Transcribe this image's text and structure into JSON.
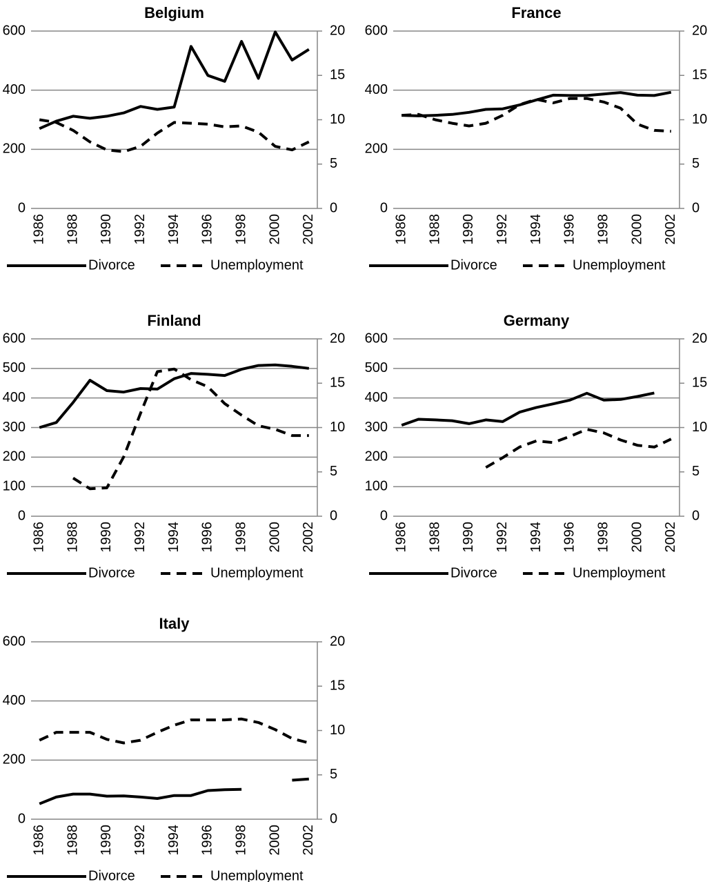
{
  "chart_data": [
    {
      "type": "line",
      "title": "Belgium",
      "categories": [
        "1986",
        null,
        "1988",
        null,
        "1990",
        null,
        "1992",
        null,
        "1994",
        null,
        "1996",
        null,
        "1998",
        null,
        "2000",
        null,
        "2002"
      ],
      "series": [
        {
          "name": "Divorce",
          "color": "#000000",
          "style": "solid",
          "values": [
            270,
            295,
            312,
            305,
            312,
            323,
            345,
            335,
            343,
            548,
            450,
            430,
            565,
            440,
            597,
            502,
            538
          ]
        },
        {
          "name": "Unemployment",
          "color": "#000000",
          "style": "dashed",
          "axis": "y2",
          "values": [
            10.0,
            9.7,
            8.8,
            7.5,
            6.6,
            6.4,
            7.0,
            8.5,
            9.7,
            9.6,
            9.5,
            9.2,
            9.3,
            8.6,
            7.0,
            6.6,
            7.5
          ]
        }
      ],
      "ylim": [
        0,
        600
      ],
      "yticks": [
        0,
        200,
        400,
        600
      ],
      "y2lim": [
        0,
        20
      ],
      "y2ticks": [
        0,
        5,
        10,
        15,
        20
      ],
      "grid": true,
      "legend": "bottom"
    },
    {
      "type": "line",
      "title": "France",
      "categories": [
        "1986",
        null,
        "1988",
        null,
        "1990",
        null,
        "1992",
        null,
        "1994",
        null,
        "1996",
        null,
        "1998",
        null,
        "2000",
        null,
        "2002"
      ],
      "series": [
        {
          "name": "Divorce",
          "color": "#000000",
          "style": "solid",
          "values": [
            315,
            313,
            315,
            318,
            325,
            335,
            337,
            350,
            367,
            383,
            382,
            382,
            387,
            392,
            383,
            382,
            393
          ]
        },
        {
          "name": "Unemployment",
          "color": "#000000",
          "style": "dashed",
          "axis": "y2",
          "values": [
            10.5,
            10.6,
            10.0,
            9.6,
            9.3,
            9.6,
            10.5,
            11.7,
            12.3,
            11.9,
            12.4,
            12.4,
            12.0,
            11.3,
            9.5,
            8.8,
            8.7
          ]
        }
      ],
      "ylim": [
        0,
        600
      ],
      "yticks": [
        0,
        200,
        400,
        600
      ],
      "y2lim": [
        0,
        20
      ],
      "y2ticks": [
        0,
        5,
        10,
        15,
        20
      ],
      "grid": true,
      "legend": "bottom"
    },
    {
      "type": "line",
      "title": "Finland",
      "categories": [
        "1986",
        null,
        "1988",
        null,
        "1990",
        null,
        "1992",
        null,
        "1994",
        null,
        "1996",
        null,
        "1998",
        null,
        "2000",
        null,
        "2002"
      ],
      "series": [
        {
          "name": "Divorce",
          "color": "#000000",
          "style": "solid",
          "values": [
            300,
            317,
            385,
            460,
            425,
            420,
            432,
            430,
            465,
            483,
            480,
            476,
            497,
            510,
            512,
            507,
            500
          ]
        },
        {
          "name": "Unemployment",
          "color": "#000000",
          "style": "dashed",
          "axis": "y2",
          "values": [
            null,
            null,
            4.3,
            3.1,
            3.2,
            6.7,
            11.6,
            16.3,
            16.6,
            15.4,
            14.6,
            12.7,
            11.4,
            10.2,
            9.8,
            9.1,
            9.1
          ]
        }
      ],
      "ylim": [
        0,
        600
      ],
      "yticks": [
        0,
        100,
        200,
        300,
        400,
        500,
        600
      ],
      "y2lim": [
        0,
        20
      ],
      "y2ticks": [
        0,
        5,
        10,
        15,
        20
      ],
      "grid": true,
      "legend": "bottom"
    },
    {
      "type": "line",
      "title": "Germany",
      "categories": [
        "1986",
        null,
        "1988",
        null,
        "1990",
        null,
        "1992",
        null,
        "1994",
        null,
        "1996",
        null,
        "1998",
        null,
        "2000",
        null,
        "2002"
      ],
      "series": [
        {
          "name": "Divorce",
          "color": "#000000",
          "style": "solid",
          "values": [
            308,
            328,
            326,
            323,
            313,
            326,
            320,
            352,
            368,
            380,
            393,
            416,
            393,
            395,
            405,
            417,
            null
          ]
        },
        {
          "name": "Unemployment",
          "color": "#000000",
          "style": "dashed",
          "axis": "y2",
          "values": [
            null,
            null,
            null,
            null,
            null,
            5.5,
            6.6,
            7.8,
            8.5,
            8.3,
            9.0,
            9.8,
            9.4,
            8.6,
            8.0,
            7.8,
            8.7
          ]
        }
      ],
      "ylim": [
        0,
        600
      ],
      "yticks": [
        0,
        100,
        200,
        300,
        400,
        500,
        600
      ],
      "y2lim": [
        0,
        20
      ],
      "y2ticks": [
        0,
        5,
        10,
        15,
        20
      ],
      "grid": true,
      "legend": "bottom"
    },
    {
      "type": "line",
      "title": "Italy",
      "categories": [
        "1986",
        null,
        "1988",
        null,
        "1990",
        null,
        "1992",
        null,
        "1994",
        null,
        "1996",
        null,
        "1998",
        null,
        "2000",
        null,
        "2002"
      ],
      "series": [
        {
          "name": "Divorce",
          "color": "#000000",
          "style": "solid",
          "values": [
            52,
            75,
            85,
            85,
            78,
            79,
            75,
            70,
            80,
            80,
            97,
            100,
            101,
            null,
            null,
            132,
            136
          ]
        },
        {
          "name": "Unemployment",
          "color": "#000000",
          "style": "dashed",
          "axis": "y2",
          "values": [
            8.9,
            9.8,
            9.8,
            9.8,
            9.0,
            8.6,
            8.9,
            9.8,
            10.6,
            11.2,
            11.2,
            11.2,
            11.3,
            10.9,
            10.1,
            9.1,
            8.6
          ]
        }
      ],
      "ylim": [
        0,
        600
      ],
      "yticks": [
        0,
        200,
        400,
        600
      ],
      "y2lim": [
        0,
        20
      ],
      "y2ticks": [
        0,
        5,
        10,
        15,
        20
      ],
      "grid": true,
      "legend": "bottom"
    }
  ]
}
